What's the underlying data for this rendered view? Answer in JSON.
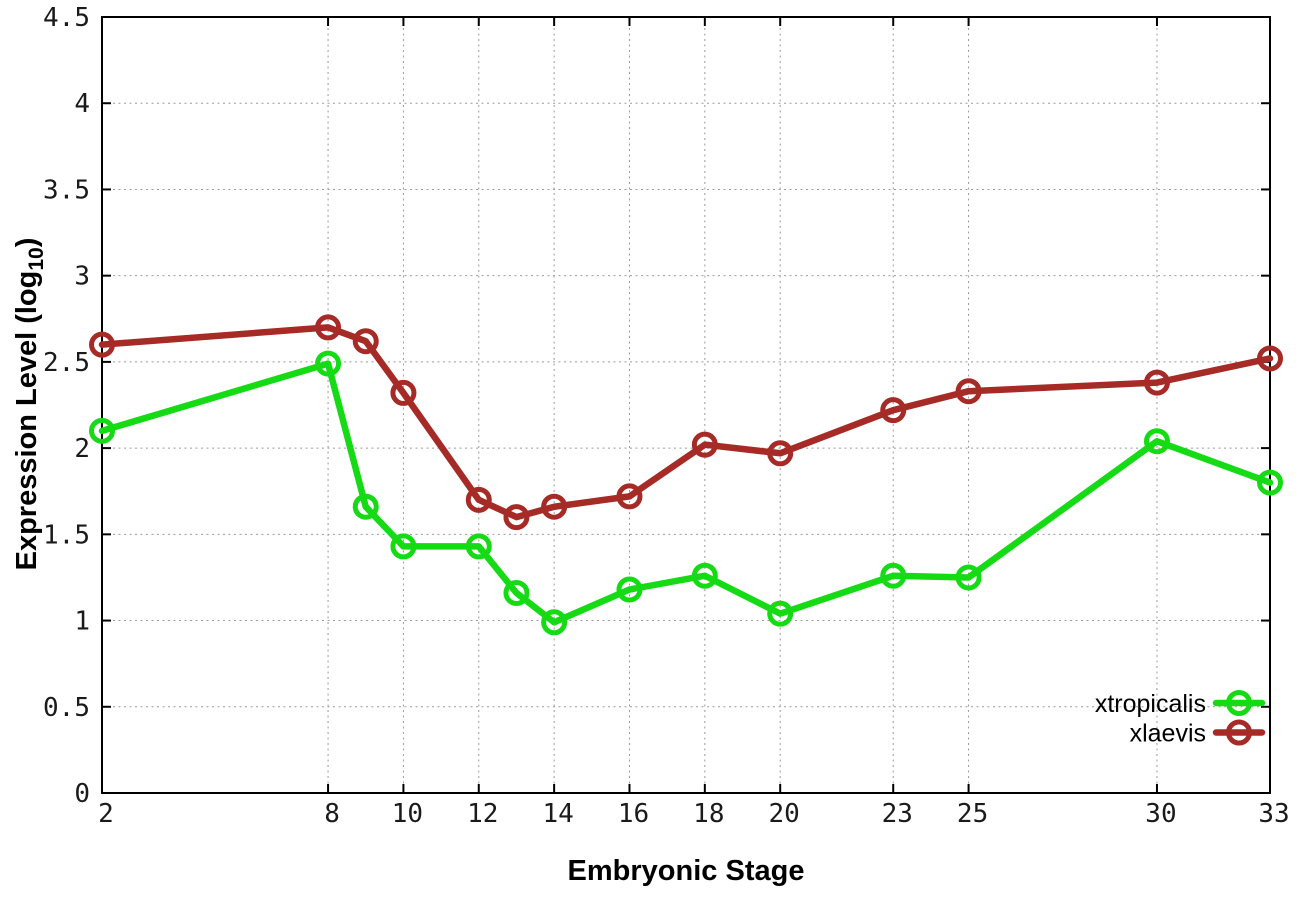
{
  "chart_data": {
    "type": "line",
    "title": "",
    "xlabel": "Embryonic Stage",
    "ylabel": "Expression Level (log10)",
    "ylabel_parts": {
      "prefix": "Expression Level (log",
      "subscript": "10",
      "suffix": ")"
    },
    "xlim": [
      2,
      33
    ],
    "ylim": [
      0,
      4.5
    ],
    "x_ticks": [
      2,
      8,
      10,
      12,
      14,
      16,
      18,
      20,
      23,
      25,
      30,
      33
    ],
    "x_tick_labels": [
      "2",
      "8",
      "10",
      "12",
      "14",
      "16",
      "18",
      "20",
      "23",
      "25",
      "30",
      "33"
    ],
    "y_ticks": [
      0,
      0.5,
      1,
      1.5,
      2,
      2.5,
      3,
      3.5,
      4,
      4.5
    ],
    "y_tick_labels": [
      "0",
      "0.5",
      "1",
      "1.5",
      "2",
      "2.5",
      "3",
      "3.5",
      "4",
      "4.5"
    ],
    "grid": true,
    "legend_position": "bottom-right",
    "x": [
      2,
      8,
      9,
      10,
      12,
      13,
      14,
      16,
      18,
      20,
      23,
      25,
      30,
      33
    ],
    "series": [
      {
        "name": "xtropicalis",
        "color": "#15DB15",
        "values": [
          2.1,
          2.49,
          1.66,
          1.43,
          1.43,
          1.16,
          0.99,
          1.18,
          1.26,
          1.04,
          1.26,
          1.25,
          2.04,
          1.8
        ]
      },
      {
        "name": "xlaevis",
        "color": "#A62B26",
        "values": [
          2.6,
          2.7,
          2.62,
          2.32,
          1.7,
          1.6,
          1.66,
          1.72,
          2.02,
          1.97,
          2.22,
          2.33,
          2.38,
          2.52
        ]
      }
    ]
  },
  "colors": {
    "background": "#ffffff",
    "axis": "#000000",
    "grid": "#9b9b9b",
    "tick_label": "#1a1a1a",
    "title_text": "#000000"
  }
}
